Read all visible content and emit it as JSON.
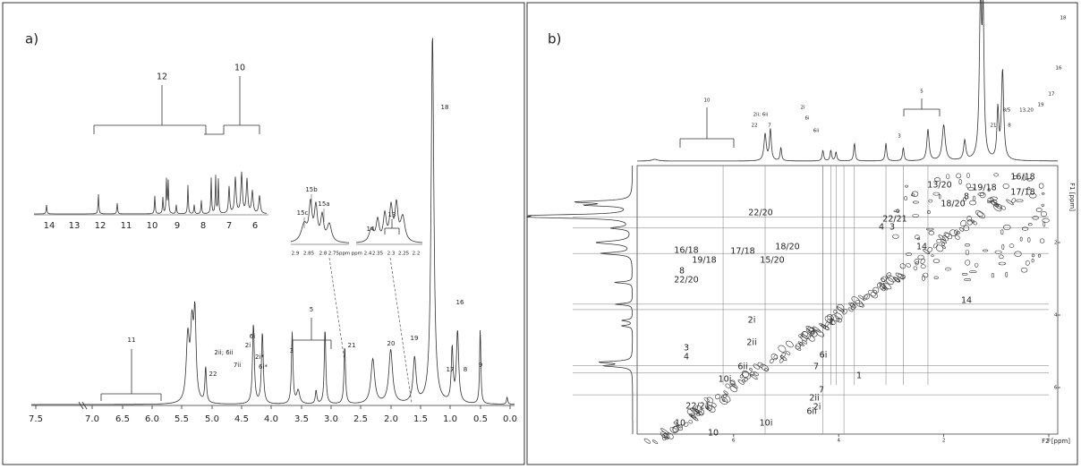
{
  "panel_a": {
    "label": "a)",
    "axis_ticks": [
      "7.5",
      "7.0",
      "6.5",
      "6.0",
      "5.5",
      "5.0",
      "4.5",
      "4.0",
      "3.5",
      "3.0",
      "2.5",
      "2.0",
      "1.5",
      "1.0",
      "0.5",
      "0.0"
    ],
    "peak_labels": [
      "11",
      "22",
      "2ii; 6ii",
      "7ii",
      "6i",
      "2i",
      "2i*",
      "6i*",
      "3",
      "5",
      "21",
      "20",
      "19",
      "18",
      "17",
      "8",
      "16",
      "9"
    ],
    "inset_main": {
      "group_labels": [
        "12",
        "10"
      ],
      "ticks": [
        "14",
        "13",
        "12",
        "11",
        "10",
        "9",
        "8",
        "7",
        "6"
      ]
    },
    "inset_15": {
      "labels": [
        "15c",
        "15b",
        "15a"
      ],
      "ticks": [
        "2.9",
        "2.85",
        "2.8",
        "2.75ppm"
      ]
    },
    "inset_13": {
      "labels": [
        "14",
        "13"
      ],
      "ticks": [
        "ppm 2.4",
        "2.35",
        "2.3",
        "2.25",
        "2.2"
      ]
    }
  },
  "panel_b": {
    "label": "b)",
    "f2_label": "F2 [ppm]",
    "f1_label": "F1 [ppm]",
    "x_ticks": [
      "6",
      "4",
      "2",
      "0"
    ],
    "y_ticks": [
      "2",
      "4",
      "6"
    ],
    "top_labels": [
      "10",
      "22",
      "2ii; 6ii",
      "7",
      "6i",
      "2i",
      "6ii",
      "5",
      "3",
      "21",
      "8/5",
      "13,20",
      "19",
      "8",
      "17",
      "16",
      "18"
    ],
    "cross_labels": [
      "22/20",
      "22/21",
      "13/20",
      "19/18",
      "16/18",
      "18/20",
      "17/18",
      "8",
      "14",
      "16/18",
      "19/18",
      "17/18",
      "18/20",
      "15/20",
      "8",
      "22/20",
      "4",
      "3",
      "3",
      "4",
      "2i",
      "2ii",
      "6ii",
      "7",
      "6i",
      "1",
      "2ii",
      "7",
      "6ii",
      "2i",
      "10i",
      "22/21",
      "10",
      "10i",
      "10",
      "1",
      "14"
    ]
  }
}
